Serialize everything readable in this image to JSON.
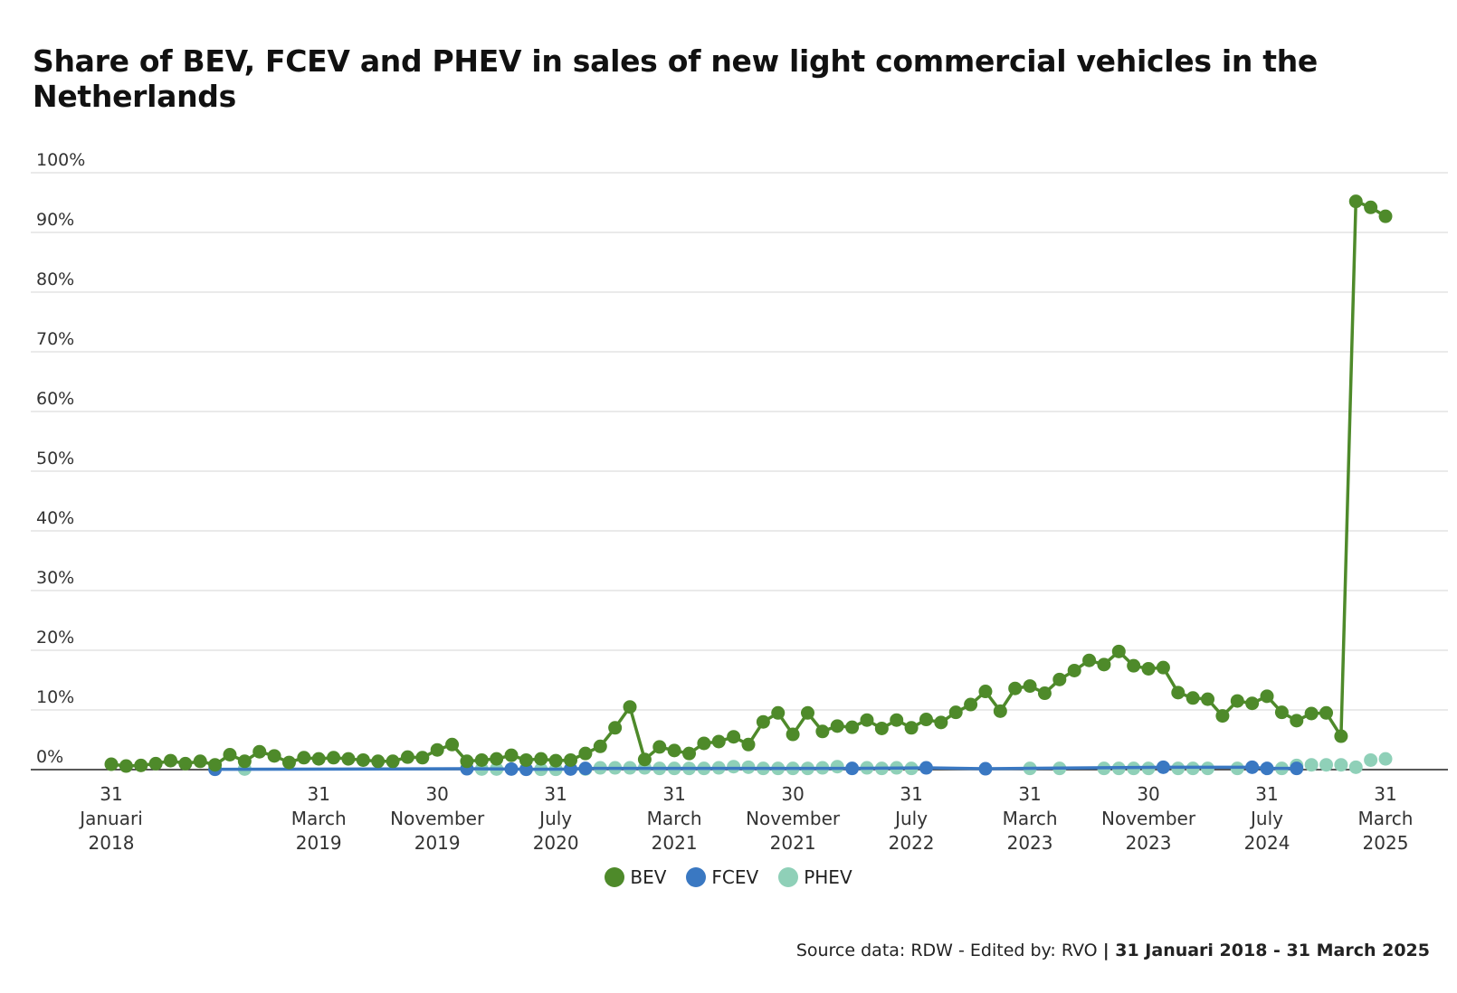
{
  "chart_data": {
    "type": "line",
    "title": "Share of BEV, FCEV and PHEV in sales of new light commercial vehicles in the Netherlands",
    "ylim": [
      0,
      100
    ],
    "y_ticks": [
      "0%",
      "10%",
      "20%",
      "30%",
      "40%",
      "50%",
      "60%",
      "70%",
      "80%",
      "90%",
      "100%"
    ],
    "x_tick_labels": [
      {
        "month_index": 0,
        "lines": [
          "31",
          "Januari",
          "2018"
        ]
      },
      {
        "month_index": 14,
        "lines": [
          "31",
          "March",
          "2019"
        ]
      },
      {
        "month_index": 22,
        "lines": [
          "30",
          "November",
          "2019"
        ]
      },
      {
        "month_index": 30,
        "lines": [
          "31",
          "July",
          "2020"
        ]
      },
      {
        "month_index": 38,
        "lines": [
          "31",
          "March",
          "2021"
        ]
      },
      {
        "month_index": 46,
        "lines": [
          "30",
          "November",
          "2021"
        ]
      },
      {
        "month_index": 54,
        "lines": [
          "31",
          "July",
          "2022"
        ]
      },
      {
        "month_index": 62,
        "lines": [
          "31",
          "March",
          "2023"
        ]
      },
      {
        "month_index": 70,
        "lines": [
          "30",
          "November",
          "2023"
        ]
      },
      {
        "month_index": 78,
        "lines": [
          "31",
          "July",
          "2024"
        ]
      },
      {
        "month_index": 86,
        "lines": [
          "31",
          "March",
          "2025"
        ]
      }
    ],
    "grid": true,
    "legend_position": "bottom-center",
    "series": [
      {
        "name": "BEV",
        "color": "#4e8a2a",
        "values": [
          0.9,
          0.6,
          0.7,
          1.0,
          1.5,
          1.0,
          1.4,
          0.8,
          2.5,
          1.4,
          3.0,
          2.3,
          1.2,
          2.0,
          1.8,
          2.0,
          1.8,
          1.6,
          1.4,
          1.4,
          2.1,
          2.0,
          3.3,
          4.2,
          1.4,
          1.6,
          1.8,
          2.4,
          1.6,
          1.8,
          1.5,
          1.6,
          2.7,
          3.9,
          7.0,
          10.5,
          1.7,
          3.8,
          3.2,
          2.7,
          4.4,
          4.7,
          5.5,
          4.2,
          8.0,
          9.5,
          5.9,
          9.5,
          6.4,
          7.3,
          7.1,
          8.3,
          6.9,
          8.3,
          7.0,
          8.4,
          7.9,
          9.6,
          10.9,
          13.1,
          9.8,
          13.6,
          14.0,
          12.8,
          15.1,
          16.6,
          18.3,
          17.6,
          19.8,
          17.4,
          16.9,
          17.1,
          12.9,
          12.0,
          11.8,
          9.0,
          11.5,
          11.1,
          12.3,
          9.6,
          8.2,
          9.4,
          9.5,
          5.6,
          95.2,
          94.2,
          92.7
        ]
      },
      {
        "name": "FCEV",
        "color": "#3a78c2",
        "values": [
          null,
          null,
          null,
          null,
          null,
          null,
          null,
          0.05,
          null,
          null,
          null,
          null,
          null,
          null,
          null,
          null,
          null,
          null,
          null,
          null,
          null,
          null,
          null,
          null,
          0.15,
          null,
          null,
          0.1,
          0.05,
          null,
          null,
          0.1,
          0.2,
          null,
          null,
          null,
          null,
          null,
          null,
          null,
          null,
          null,
          null,
          null,
          null,
          null,
          null,
          null,
          null,
          null,
          0.2,
          null,
          null,
          null,
          null,
          0.3,
          null,
          null,
          null,
          0.15,
          null,
          null,
          null,
          null,
          null,
          null,
          null,
          null,
          null,
          null,
          null,
          0.4,
          null,
          null,
          null,
          null,
          null,
          0.4,
          0.2,
          null,
          0.2,
          null,
          null,
          null,
          null,
          null,
          null
        ]
      },
      {
        "name": "PHEV",
        "color": "#8fd0b8",
        "values": [
          null,
          null,
          null,
          null,
          null,
          null,
          null,
          null,
          null,
          0.1,
          null,
          null,
          null,
          null,
          null,
          null,
          null,
          null,
          null,
          null,
          null,
          null,
          null,
          null,
          null,
          0.1,
          0.1,
          null,
          null,
          0.05,
          0.05,
          null,
          0.1,
          0.3,
          0.3,
          0.3,
          0.3,
          0.2,
          0.2,
          0.2,
          0.2,
          0.3,
          0.5,
          0.4,
          0.2,
          0.2,
          0.2,
          0.2,
          0.3,
          0.5,
          null,
          0.3,
          0.2,
          0.3,
          0.2,
          null,
          null,
          null,
          null,
          null,
          null,
          null,
          0.2,
          null,
          0.2,
          null,
          null,
          0.2,
          0.2,
          0.2,
          0.2,
          null,
          0.2,
          0.2,
          0.2,
          null,
          0.2,
          null,
          null,
          0.2,
          0.7,
          0.8,
          0.8,
          0.8,
          0.4,
          1.6,
          1.8
        ]
      }
    ]
  },
  "source": {
    "text": "Source data: RDW - Edited by: RVO",
    "period": "| 31 Januari 2018 - 31 March 2025"
  }
}
